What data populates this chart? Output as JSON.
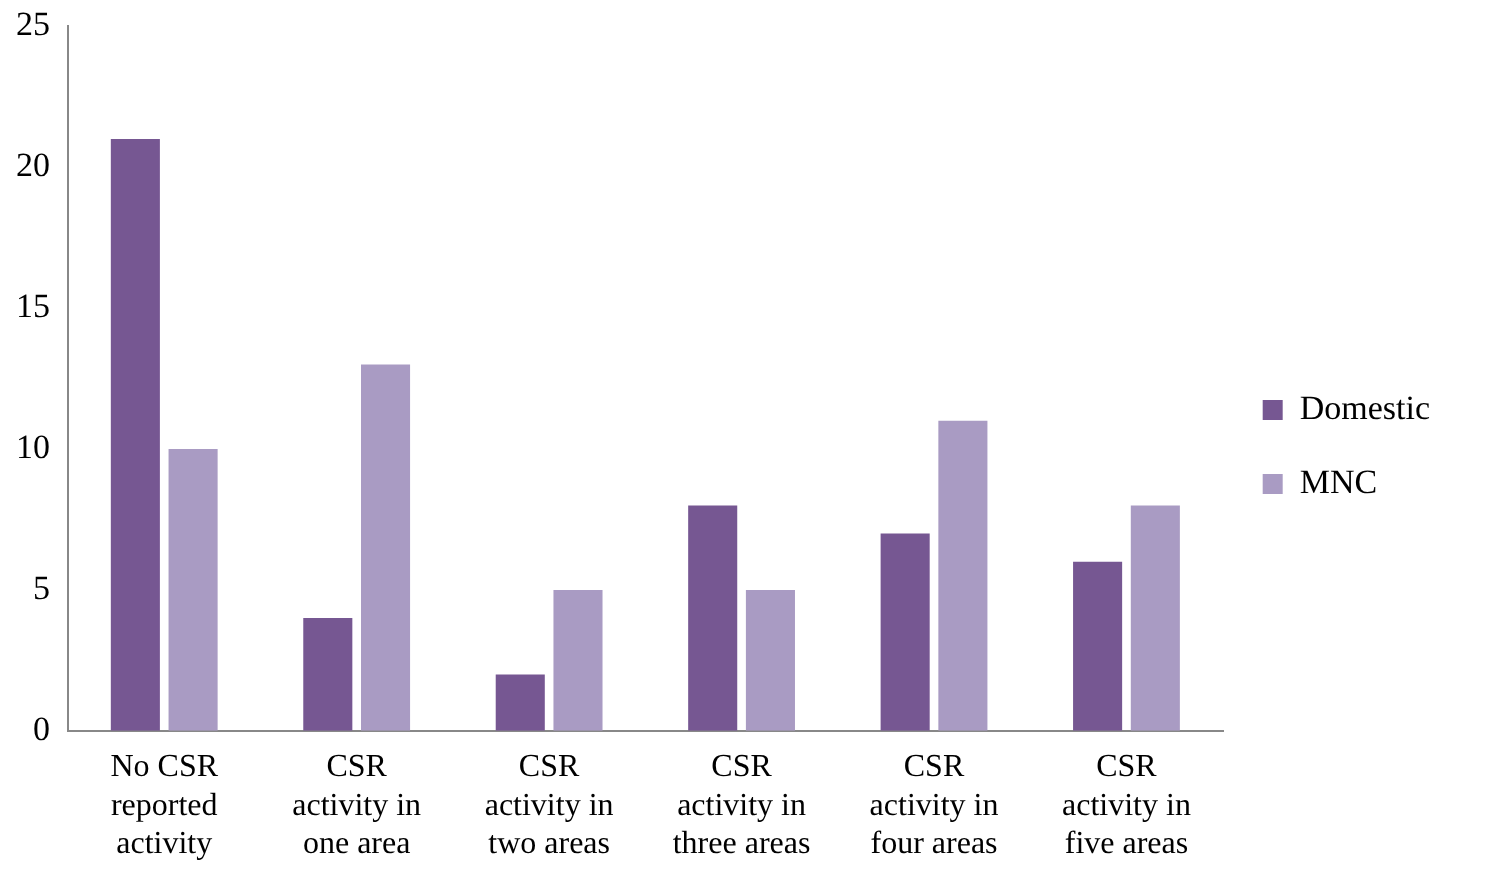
{
  "chart_data": {
    "type": "bar",
    "categories": [
      "No CSR reported activity",
      "CSR activity in one area",
      "CSR activity in two areas",
      "CSR activity in three areas",
      "CSR activity in four areas",
      "CSR activity in five areas"
    ],
    "series": [
      {
        "name": "Domestic",
        "color": "#765792",
        "values": [
          21,
          4,
          2,
          8,
          7,
          6
        ]
      },
      {
        "name": "MNC",
        "color": "#a99bc3",
        "values": [
          10,
          13,
          5,
          5,
          11,
          8
        ]
      }
    ],
    "ylim": [
      0,
      25
    ],
    "yticks": [
      0,
      5,
      10,
      15,
      20,
      25
    ],
    "grid": false,
    "legend": "right"
  }
}
